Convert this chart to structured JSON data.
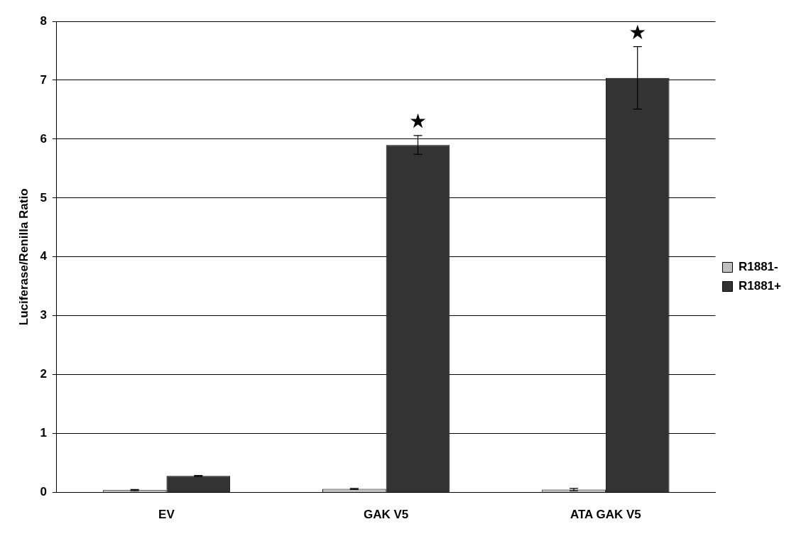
{
  "chart_data": {
    "type": "bar",
    "ylabel": "Luciferase/Renilla Ratio",
    "categories": [
      "EV",
      "GAK V5",
      "ATA GAK V5"
    ],
    "series": [
      {
        "name": "R1881-",
        "color": "#c0c0c0",
        "values": [
          0.04,
          0.06,
          0.05
        ],
        "errors": [
          0.01,
          0.01,
          0.02
        ]
      },
      {
        "name": "R1881+",
        "color": "#333333",
        "values": [
          0.28,
          5.9,
          7.04
        ],
        "errors": [
          0.01,
          0.16,
          0.53
        ]
      }
    ],
    "ylim": [
      0,
      8
    ],
    "yticks": [
      0,
      1,
      2,
      3,
      4,
      5,
      6,
      7,
      8
    ],
    "grid": "y",
    "legend": "right",
    "annotations": [
      "★",
      "★"
    ]
  }
}
